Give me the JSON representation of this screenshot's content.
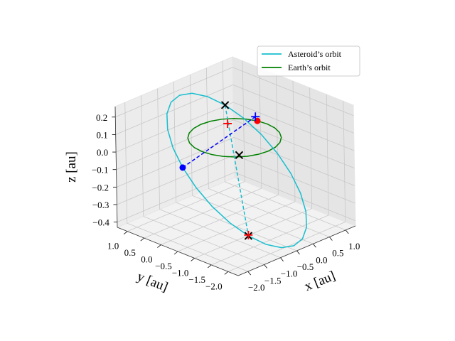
{
  "chart_data": {
    "type": "line3d",
    "xlabel": "x [au]",
    "ylabel": "y [au]",
    "zlabel": "z [au]",
    "xlim": [
      -2.3,
      1.3
    ],
    "ylim": [
      -2.3,
      1.3
    ],
    "zlim": [
      -0.43,
      0.26
    ],
    "xticks": [
      {
        "value": -2,
        "label": "−2.0"
      },
      {
        "value": -1.5,
        "label": "−1.5"
      },
      {
        "value": -1,
        "label": "−1.0"
      },
      {
        "value": -0.5,
        "label": "−0.5"
      },
      {
        "value": 0,
        "label": "0.0"
      },
      0.5,
      {
        "value": 1,
        "label": "1.0"
      }
    ],
    "yticks": [
      {
        "value": 1,
        "label": "1.0"
      },
      0.5,
      {
        "value": 0,
        "label": "0.0"
      },
      {
        "value": -0.5,
        "label": "−0.5"
      },
      {
        "value": -1,
        "label": "−1.0"
      },
      {
        "value": -1.5,
        "label": "−1.5"
      },
      {
        "value": -2,
        "label": "−2.0"
      }
    ],
    "zticks": [
      {
        "value": -0.4,
        "label": "−0.4"
      },
      {
        "value": -0.3,
        "label": "−0.3"
      },
      {
        "value": -0.2,
        "label": "−0.2"
      },
      {
        "value": -0.1,
        "label": "−0.1"
      },
      {
        "value": 0,
        "label": "0.0"
      },
      0.1,
      0.2
    ],
    "grid": true,
    "legend": "upper right",
    "series": [
      {
        "name": "Asteroid’s orbit",
        "color": "#17becf",
        "x": [
          -0.22,
          -0.353,
          -0.498,
          -0.646,
          -0.787,
          -0.911,
          -1.01,
          -1.077,
          -1.107,
          -1.098,
          -1.052,
          -0.971,
          -0.86,
          -0.727,
          -0.582,
          -0.434,
          -0.293,
          -0.169,
          -0.07,
          -0.003,
          0.027,
          0.018,
          -0.028,
          -0.109
        ],
        "y": [
          0.05,
          0.441,
          0.761,
          0.989,
          1.112,
          1.119,
          1.01,
          0.793,
          0.482,
          0.099,
          -0.331,
          -0.777,
          -1.21,
          -1.601,
          -1.921,
          -2.149,
          -2.272,
          -2.279,
          -2.17,
          -1.953,
          -1.642,
          -1.259,
          -0.829,
          -0.383
        ],
        "z": [
          0.2,
          0.229,
          0.235,
          0.218,
          0.18,
          0.123,
          0.05,
          -0.033,
          -0.12,
          -0.206,
          -0.285,
          -0.351,
          -0.4,
          -0.429,
          -0.435,
          -0.418,
          -0.38,
          -0.323,
          -0.25,
          -0.167,
          -0.08,
          0.006,
          0.085,
          0.151
        ]
      },
      {
        "name": "Earth’s orbit",
        "color": "#008000",
        "x": [
          1,
          0.966,
          0.866,
          0.707,
          0.5,
          0.259,
          0,
          -0.259,
          -0.5,
          -0.707,
          -0.866,
          -0.966,
          -1,
          -0.966,
          -0.866,
          -0.707,
          -0.5,
          -0.259,
          0,
          0.259,
          0.5,
          0.707,
          0.866,
          0.966
        ],
        "y": [
          0,
          0.259,
          0.5,
          0.707,
          0.866,
          0.966,
          1,
          0.966,
          0.866,
          0.707,
          0.5,
          0.259,
          0,
          -0.259,
          -0.5,
          -0.707,
          -0.866,
          -0.966,
          -1,
          -0.966,
          -0.866,
          -0.707,
          -0.5,
          -0.259
        ],
        "z": [
          0,
          0,
          0,
          0,
          0,
          0,
          0,
          0,
          0,
          0,
          0,
          0,
          0,
          0,
          0,
          0,
          0,
          0,
          0,
          0,
          0,
          0,
          0,
          0
        ]
      }
    ],
    "dashed_lines": [
      {
        "color": "#17becf",
        "x": [
          -0.22,
          -0.86
        ],
        "y": [
          0.05,
          -1.21
        ],
        "z": [
          0.2,
          -0.4
        ]
      },
      {
        "color": "#0000ff",
        "x": [
          -1.107,
          0.9
        ],
        "y": [
          0.482,
          0.25
        ],
        "z": [
          -0.12,
          0.03
        ]
      }
    ],
    "markers": [
      {
        "marker": "x",
        "color": "#000000",
        "x": -0.22,
        "y": 0.05,
        "z": 0.2
      },
      {
        "marker": "x",
        "color": "#000000",
        "x": 0.07,
        "y": -0.06,
        "z": -0.1
      },
      {
        "marker": "x",
        "color": "#000000",
        "x": -0.86,
        "y": -1.21,
        "z": -0.4
      },
      {
        "marker": "o",
        "color": "#0000ff",
        "x": -1.107,
        "y": 0.482,
        "z": -0.12
      },
      {
        "marker": "o",
        "color": "#ff0000",
        "x": 0.966,
        "y": 0.259,
        "z": 0
      },
      {
        "marker": "+",
        "color": "#0000ff",
        "x": 0.9,
        "y": 0.25,
        "z": 0.03
      },
      {
        "marker": "+",
        "color": "#ff0000",
        "x": 0.1,
        "y": 0.3,
        "z": 0.05
      },
      {
        "marker": "+",
        "color": "#ff0000",
        "x": -0.83,
        "y": -1.18,
        "z": -0.4
      }
    ]
  }
}
